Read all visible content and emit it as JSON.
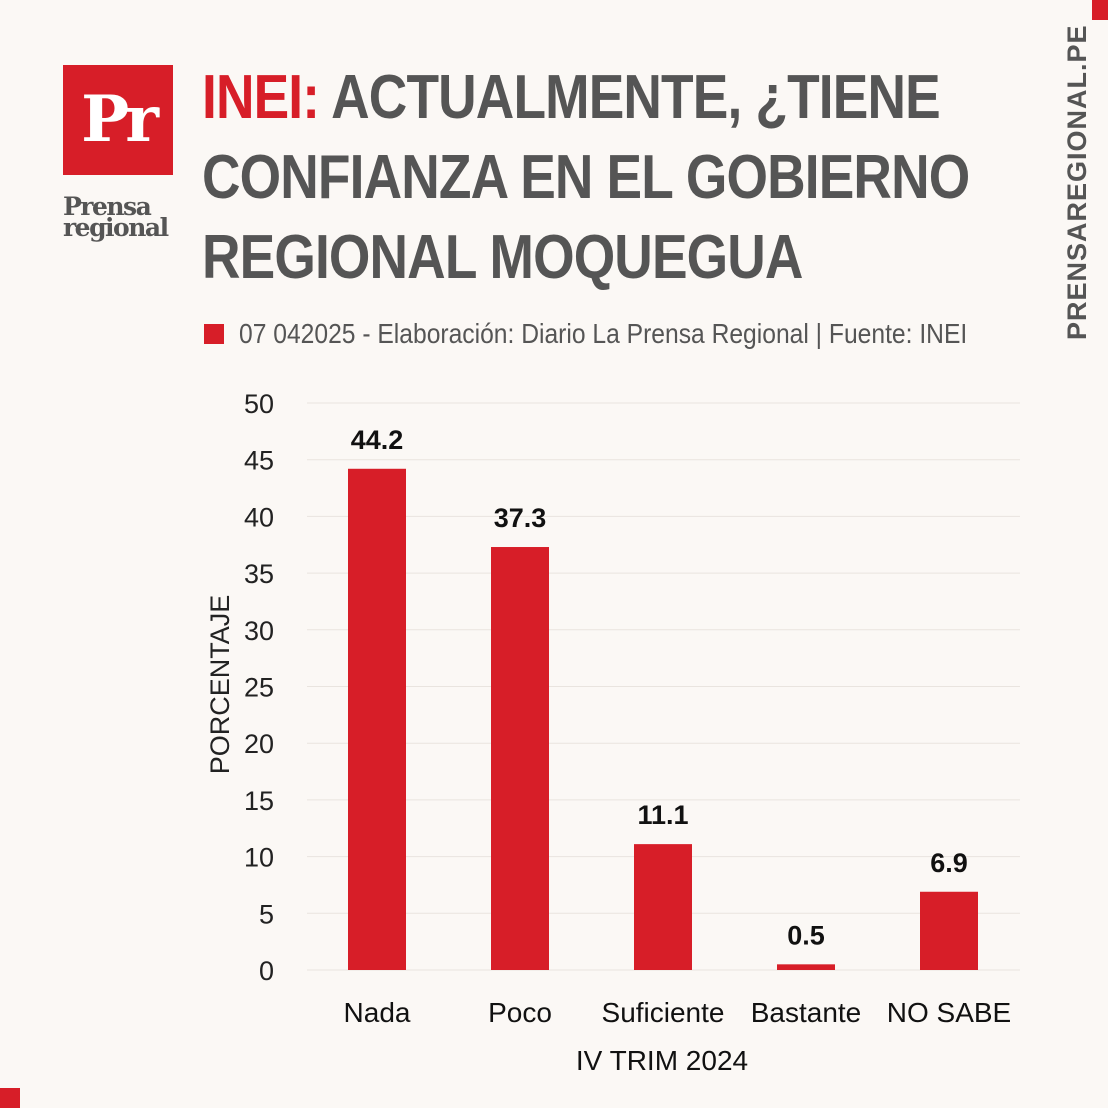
{
  "brand": {
    "logo_mark": "Pr",
    "logo_word_1": "Prensa",
    "logo_word_2": "regional",
    "site": "PRENSAREGIONAL.PE",
    "accent_color": "#d71e28",
    "text_color": "#555555"
  },
  "header": {
    "headline_accent": "INEI:",
    "headline_line1": "ACTUALMENTE, ¿TIENE",
    "headline_line2": "CONFIANZA EN EL GOBIERNO",
    "headline_line3": "REGIONAL MOQUEGUA",
    "source": "07 042025 - Elaboración: Diario La Prensa Regional | Fuente: INEI"
  },
  "chart_data": {
    "type": "bar",
    "title": "INEI: ACTUALMENTE, ¿TIENE CONFIANZA EN EL GOBIERNO REGIONAL MOQUEGUA",
    "categories": [
      "Nada",
      "Poco",
      "Suficiente",
      "Bastante",
      "NO SABE"
    ],
    "values": [
      44.2,
      37.3,
      11.1,
      0.5,
      6.9
    ],
    "value_labels": [
      "44.2",
      "37.3",
      "11.1",
      "0.5",
      "6.9"
    ],
    "xlabel": "IV TRIM 2024",
    "ylabel": "PORCENTAJE",
    "ylim": [
      0,
      50
    ],
    "yticks": [
      0,
      5,
      10,
      15,
      20,
      25,
      30,
      35,
      40,
      45,
      50
    ],
    "grid": true,
    "bar_color": "#d71e28"
  }
}
